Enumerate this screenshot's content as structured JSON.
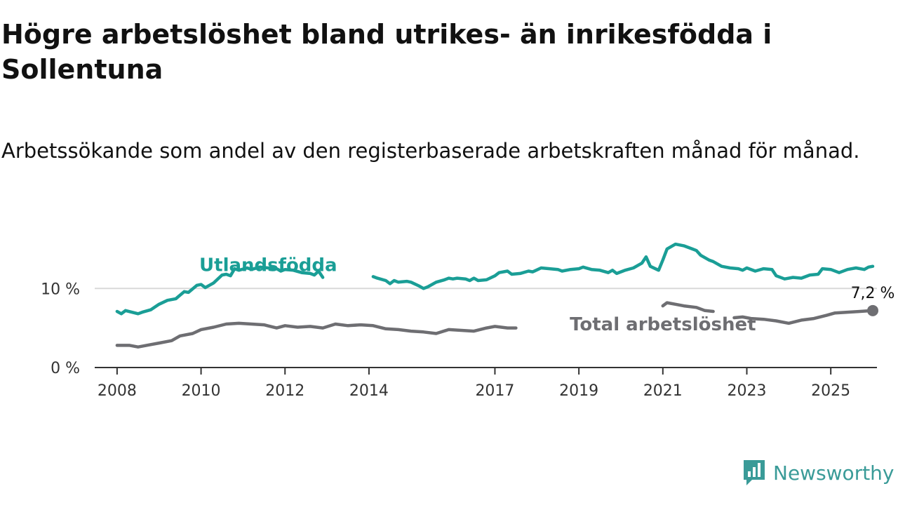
{
  "header": {
    "title": "Högre arbetslöshet bland utrikes- än inrikesfödda i Sollentuna",
    "subtitle": "Arbetssökande som andel av den registerbaserade arbetskraften månad för månad."
  },
  "brand": {
    "name": "Newsworthy",
    "color": "#3a9b98",
    "icon": "bar-chart-speech-bubble-icon"
  },
  "chart_data": {
    "type": "line",
    "x_ticks": [
      2008,
      2010,
      2012,
      2014,
      2017,
      2019,
      2021,
      2023,
      2025
    ],
    "y_ticks": [
      {
        "value": 0,
        "label": "0 %"
      },
      {
        "value": 10,
        "label": "10 %"
      }
    ],
    "xlim": [
      2007.3,
      2026.1
    ],
    "ylim": [
      0,
      16.5
    ],
    "grid": true,
    "series": [
      {
        "name": "Utlandsfödda",
        "color": "#1a9e96",
        "label_at": [
          2011.6,
          13.0
        ],
        "points": [
          [
            2008.0,
            7.1
          ],
          [
            2008.1,
            6.8
          ],
          [
            2008.2,
            7.2
          ],
          [
            2008.5,
            6.8
          ],
          [
            2008.6,
            7.0
          ],
          [
            2008.8,
            7.3
          ],
          [
            2009.0,
            8.0
          ],
          [
            2009.2,
            8.5
          ],
          [
            2009.4,
            8.7
          ],
          [
            2009.6,
            9.6
          ],
          [
            2009.7,
            9.5
          ],
          [
            2009.9,
            10.4
          ],
          [
            2010.0,
            10.5
          ],
          [
            2010.1,
            10.1
          ],
          [
            2010.3,
            10.7
          ],
          [
            2010.5,
            11.7
          ],
          [
            2010.6,
            11.8
          ],
          [
            2010.7,
            11.6
          ],
          [
            2010.8,
            12.5
          ],
          [
            2010.9,
            12.3
          ],
          [
            2011.1,
            12.6
          ],
          [
            2011.2,
            12.4
          ],
          [
            2011.4,
            12.7
          ],
          [
            2011.6,
            12.6
          ],
          [
            2011.8,
            12.5
          ],
          [
            2011.9,
            12.2
          ],
          [
            2012.0,
            12.4
          ],
          [
            2012.2,
            12.3
          ],
          [
            2012.4,
            12.0
          ],
          [
            2012.6,
            11.9
          ],
          [
            2012.7,
            11.7
          ],
          [
            2012.8,
            12.2
          ],
          [
            2012.9,
            11.4
          ]
        ],
        "segments": [
          [
            [
              2014.1,
              11.5
            ],
            [
              2014.2,
              11.3
            ],
            [
              2014.4,
              11.0
            ],
            [
              2014.5,
              10.6
            ],
            [
              2014.6,
              11.0
            ],
            [
              2014.7,
              10.8
            ],
            [
              2014.9,
              10.9
            ],
            [
              2015.0,
              10.8
            ],
            [
              2015.2,
              10.3
            ],
            [
              2015.3,
              10.0
            ],
            [
              2015.4,
              10.2
            ],
            [
              2015.6,
              10.8
            ],
            [
              2015.8,
              11.1
            ],
            [
              2015.9,
              11.3
            ],
            [
              2016.0,
              11.2
            ],
            [
              2016.1,
              11.3
            ],
            [
              2016.3,
              11.2
            ],
            [
              2016.4,
              11.0
            ],
            [
              2016.5,
              11.3
            ],
            [
              2016.6,
              11.0
            ],
            [
              2016.8,
              11.1
            ],
            [
              2017.0,
              11.6
            ],
            [
              2017.1,
              12.0
            ],
            [
              2017.3,
              12.2
            ],
            [
              2017.4,
              11.8
            ],
            [
              2017.6,
              11.9
            ],
            [
              2017.8,
              12.2
            ],
            [
              2017.9,
              12.1
            ],
            [
              2018.1,
              12.6
            ],
            [
              2018.3,
              12.5
            ],
            [
              2018.5,
              12.4
            ],
            [
              2018.6,
              12.2
            ],
            [
              2018.8,
              12.4
            ],
            [
              2019.0,
              12.5
            ],
            [
              2019.1,
              12.7
            ],
            [
              2019.3,
              12.4
            ],
            [
              2019.5,
              12.3
            ],
            [
              2019.7,
              12.0
            ],
            [
              2019.8,
              12.3
            ],
            [
              2019.9,
              11.9
            ],
            [
              2020.1,
              12.3
            ],
            [
              2020.3,
              12.6
            ],
            [
              2020.5,
              13.2
            ],
            [
              2020.6,
              14.0
            ],
            [
              2020.7,
              12.8
            ],
            [
              2020.9,
              12.3
            ],
            [
              2021.0,
              13.6
            ],
            [
              2021.1,
              15.0
            ],
            [
              2021.3,
              15.6
            ],
            [
              2021.5,
              15.4
            ],
            [
              2021.7,
              15.0
            ],
            [
              2021.8,
              14.8
            ],
            [
              2021.9,
              14.2
            ],
            [
              2022.1,
              13.6
            ],
            [
              2022.2,
              13.4
            ],
            [
              2022.4,
              12.8
            ],
            [
              2022.6,
              12.6
            ],
            [
              2022.8,
              12.5
            ],
            [
              2022.9,
              12.3
            ],
            [
              2023.0,
              12.6
            ],
            [
              2023.2,
              12.2
            ],
            [
              2023.4,
              12.5
            ],
            [
              2023.6,
              12.4
            ],
            [
              2023.7,
              11.6
            ],
            [
              2023.9,
              11.2
            ],
            [
              2024.1,
              11.4
            ],
            [
              2024.3,
              11.3
            ],
            [
              2024.5,
              11.7
            ],
            [
              2024.7,
              11.8
            ],
            [
              2024.8,
              12.5
            ],
            [
              2025.0,
              12.4
            ],
            [
              2025.2,
              12.0
            ],
            [
              2025.4,
              12.4
            ],
            [
              2025.6,
              12.6
            ],
            [
              2025.8,
              12.4
            ],
            [
              2025.9,
              12.7
            ],
            [
              2026.0,
              12.8
            ]
          ]
        ]
      },
      {
        "name": "Total arbetslöshet",
        "color": "#6e6e72",
        "label_at": [
          2021.0,
          5.5
        ],
        "end_value_label": "7,2 %",
        "segments": [
          [
            [
              2008.0,
              2.8
            ],
            [
              2008.3,
              2.8
            ],
            [
              2008.5,
              2.6
            ],
            [
              2008.8,
              2.9
            ],
            [
              2009.0,
              3.1
            ],
            [
              2009.3,
              3.4
            ],
            [
              2009.5,
              4.0
            ],
            [
              2009.8,
              4.3
            ],
            [
              2010.0,
              4.8
            ],
            [
              2010.3,
              5.1
            ],
            [
              2010.6,
              5.5
            ],
            [
              2010.9,
              5.6
            ],
            [
              2011.2,
              5.5
            ],
            [
              2011.5,
              5.4
            ],
            [
              2011.8,
              5.0
            ],
            [
              2012.0,
              5.3
            ],
            [
              2012.3,
              5.1
            ],
            [
              2012.6,
              5.2
            ],
            [
              2012.9,
              5.0
            ],
            [
              2013.2,
              5.5
            ],
            [
              2013.5,
              5.3
            ],
            [
              2013.8,
              5.4
            ],
            [
              2014.1,
              5.3
            ],
            [
              2014.4,
              4.9
            ],
            [
              2014.7,
              4.8
            ],
            [
              2015.0,
              4.6
            ],
            [
              2015.3,
              4.5
            ],
            [
              2015.6,
              4.3
            ],
            [
              2015.9,
              4.8
            ],
            [
              2016.2,
              4.7
            ],
            [
              2016.5,
              4.6
            ],
            [
              2016.8,
              5.0
            ],
            [
              2017.0,
              5.2
            ],
            [
              2017.3,
              5.0
            ],
            [
              2017.5,
              5.0
            ]
          ],
          [
            [
              2021.0,
              7.8
            ],
            [
              2021.1,
              8.2
            ],
            [
              2021.3,
              8.0
            ],
            [
              2021.5,
              7.8
            ],
            [
              2021.8,
              7.6
            ],
            [
              2022.0,
              7.2
            ],
            [
              2022.2,
              7.1
            ]
          ],
          [
            [
              2022.7,
              6.3
            ],
            [
              2022.9,
              6.4
            ],
            [
              2023.1,
              6.2
            ],
            [
              2023.4,
              6.1
            ],
            [
              2023.7,
              5.9
            ],
            [
              2024.0,
              5.6
            ],
            [
              2024.3,
              6.0
            ],
            [
              2024.6,
              6.2
            ],
            [
              2024.9,
              6.6
            ],
            [
              2025.1,
              6.9
            ],
            [
              2025.4,
              7.0
            ],
            [
              2025.7,
              7.1
            ],
            [
              2026.0,
              7.2
            ]
          ]
        ]
      }
    ]
  }
}
